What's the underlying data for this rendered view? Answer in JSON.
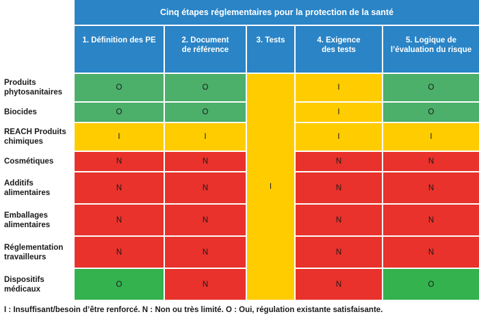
{
  "title": "Cinq étapes réglementaires pour la protection de la santé",
  "columns": [
    [
      "1. Définition des PE"
    ],
    [
      "2. Document",
      "de référence"
    ],
    [
      "3. Tests"
    ],
    [
      "4. Exigence",
      "des tests"
    ],
    [
      "5. Logique de",
      "l’évaluation du risque"
    ]
  ],
  "tests_value": "I",
  "rows": [
    {
      "label": [
        "Produits",
        "phytosanitaires"
      ],
      "values": [
        "O",
        "O",
        "I",
        "O"
      ],
      "colors": [
        "O",
        "O",
        "I",
        "O"
      ]
    },
    {
      "label": [
        "Biocides"
      ],
      "values": [
        "O",
        "O",
        "I",
        "O"
      ],
      "colors": [
        "O",
        "O",
        "I",
        "O"
      ]
    },
    {
      "label": [
        "REACH Produits",
        "chimiques"
      ],
      "values": [
        "I",
        "I",
        "I",
        "I"
      ],
      "colors": [
        "I",
        "I",
        "I",
        "I"
      ]
    },
    {
      "label": [
        "Cosmétiques"
      ],
      "values": [
        "N",
        "N",
        "N",
        "N"
      ],
      "colors": [
        "N",
        "N",
        "N",
        "N"
      ]
    },
    {
      "label": [
        "Additifs",
        "alimentaires"
      ],
      "values": [
        "N",
        "N",
        "N",
        "N"
      ],
      "colors": [
        "N",
        "N",
        "N",
        "N"
      ]
    },
    {
      "label": [
        "Emballages",
        "alimentaires"
      ],
      "values": [
        "N",
        "N",
        "N",
        "N"
      ],
      "colors": [
        "N",
        "N",
        "N",
        "N"
      ]
    },
    {
      "label": [
        "Réglementation",
        "travailleurs"
      ],
      "values": [
        "N",
        "N",
        "N",
        "N"
      ],
      "colors": [
        "N",
        "N",
        "N",
        "N"
      ]
    },
    {
      "label": [
        "Dispositifs",
        "médicaux"
      ],
      "values": [
        "O",
        "N",
        "N",
        "O"
      ],
      "colors": [
        "Odark",
        "N",
        "N",
        "Odark"
      ]
    }
  ],
  "legend": "I : Insuffisant/besoin d’être renforcé. N : Non ou très limité. O : Oui, régulation existante satisfaisante.",
  "colors": {
    "header": "#2a84c6",
    "O": "#4caf6a",
    "I": "#ffcc00",
    "N": "#e8322b"
  }
}
